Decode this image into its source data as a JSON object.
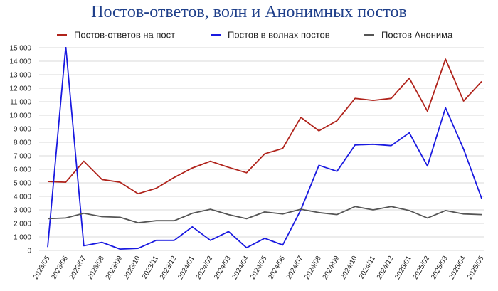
{
  "chart_data": {
    "type": "line",
    "title": "Постов-ответов, волн и Анонимных постов",
    "xlabel": "",
    "ylabel": "",
    "ylim": [
      0,
      15000
    ],
    "yticks": [
      0,
      1000,
      2000,
      3000,
      4000,
      5000,
      6000,
      7000,
      8000,
      9000,
      10000,
      11000,
      12000,
      13000,
      14000,
      15000
    ],
    "ytick_labels": [
      "0",
      "1 000",
      "2 000",
      "3 000",
      "4 000",
      "5 000",
      "6 000",
      "7 000",
      "8 000",
      "9 000",
      "10 000",
      "11 000",
      "12 000",
      "13 000",
      "14 000",
      "15 000"
    ],
    "categories": [
      "2023/05",
      "2023/06",
      "2023/07",
      "2023/08",
      "2023/09",
      "2023/10",
      "2023/11",
      "2023/12",
      "2024/01",
      "2024/02",
      "2024/03",
      "2024/04",
      "2024/05",
      "2024/06",
      "2024/07",
      "2024/08",
      "2024/09",
      "2024/10",
      "2024/11",
      "2024/12",
      "2025/01",
      "2025/02",
      "2025/03",
      "2025/04",
      "2025/05"
    ],
    "grid": "horizontal",
    "legend_position": "top",
    "series": [
      {
        "name": "Постов-ответов на пост",
        "color": "#b0231b",
        "values": [
          5100,
          5050,
          6600,
          5250,
          5050,
          4200,
          4600,
          5400,
          6100,
          6600,
          6150,
          5750,
          7150,
          7550,
          9850,
          8850,
          9600,
          11250,
          11100,
          11250,
          12750,
          10300,
          14150,
          11050,
          12500
        ]
      },
      {
        "name": "Постов в волнах постов",
        "color": "#1a1ae0",
        "values": [
          250,
          15100,
          350,
          600,
          100,
          150,
          750,
          750,
          1750,
          750,
          1400,
          200,
          900,
          400,
          3000,
          6300,
          5850,
          7800,
          7850,
          7750,
          8700,
          6250,
          10550,
          7500,
          3850
        ]
      },
      {
        "name": "Постов Анонима",
        "color": "#555555",
        "values": [
          2350,
          2400,
          2750,
          2500,
          2450,
          2050,
          2200,
          2200,
          2750,
          3050,
          2650,
          2350,
          2850,
          2700,
          3050,
          2800,
          2650,
          3250,
          3000,
          3250,
          2950,
          2400,
          2950,
          2700,
          2650
        ]
      }
    ]
  }
}
